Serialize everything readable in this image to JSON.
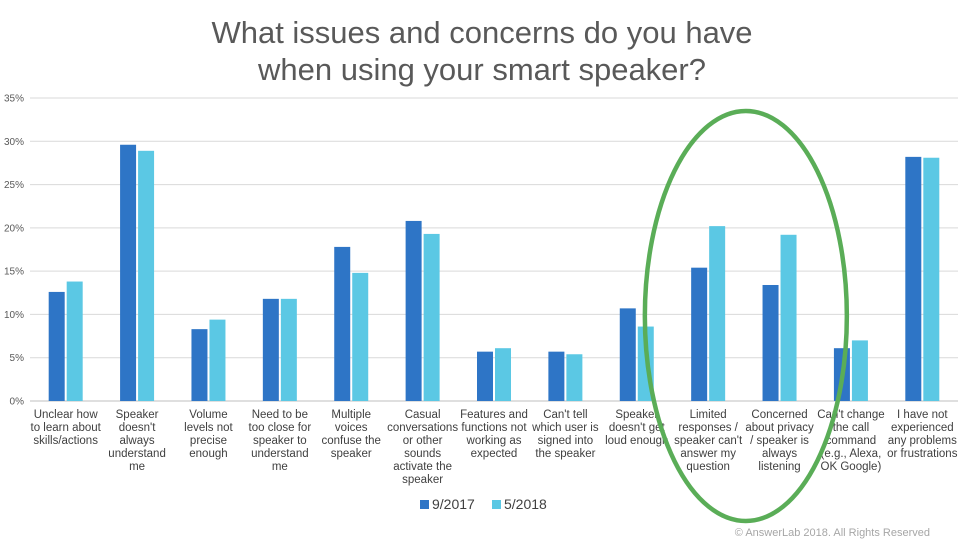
{
  "title_line1": "What issues and concerns do you have",
  "title_line2": "when using your smart speaker?",
  "copyright": "© AnswerLab 2018. All Rights Reserved",
  "chart_data": {
    "type": "bar",
    "title": "What issues and concerns do you have when using your smart speaker?",
    "ylim": [
      0,
      35
    ],
    "yticks": [
      "0%",
      "5%",
      "10%",
      "15%",
      "20%",
      "25%",
      "30%",
      "35%"
    ],
    "grid": true,
    "legend_position": "bottom",
    "categories": [
      [
        "Unclear how",
        "to learn about",
        "skills/actions"
      ],
      [
        "Speaker",
        "doesn't",
        "always",
        "understand",
        "me"
      ],
      [
        "Volume",
        "levels not",
        "precise",
        "enough"
      ],
      [
        "Need to be",
        "too close for",
        "speaker to",
        "understand",
        "me"
      ],
      [
        "Multiple",
        "voices",
        "confuse the",
        "speaker"
      ],
      [
        "Casual",
        "conversations",
        "or other",
        "sounds",
        "activate the",
        "speaker"
      ],
      [
        "Features and",
        "functions not",
        "working as",
        "expected"
      ],
      [
        "Can't tell",
        "which user is",
        "signed into",
        "the speaker"
      ],
      [
        "Speaker",
        "doesn't get",
        "loud enough"
      ],
      [
        "Limited",
        "responses /",
        "speaker can't",
        "answer my",
        "question"
      ],
      [
        "Concerned",
        "about privacy",
        "/ speaker is",
        "always",
        "listening"
      ],
      [
        "Can't change",
        "the call",
        "command",
        "(e.g., Alexa,",
        "OK Google)"
      ],
      [
        "I have not",
        "experienced",
        "any problems",
        "or frustrations"
      ]
    ],
    "series": [
      {
        "name": "9/2017",
        "color": "#2e75c6",
        "values": [
          12.6,
          29.6,
          8.3,
          11.8,
          17.8,
          20.8,
          5.7,
          5.7,
          10.7,
          15.4,
          13.4,
          6.1,
          28.2
        ]
      },
      {
        "name": "5/2018",
        "color": "#5bc8e4",
        "values": [
          13.8,
          28.9,
          9.4,
          11.8,
          14.8,
          19.3,
          6.1,
          5.4,
          8.6,
          20.2,
          19.2,
          7.0,
          28.1
        ]
      }
    ],
    "highlight": {
      "shape": "ellipse",
      "color": "#5aad57",
      "categories": [
        "Limited responses / speaker can't answer my question",
        "Concerned about privacy / speaker is always listening"
      ]
    }
  }
}
